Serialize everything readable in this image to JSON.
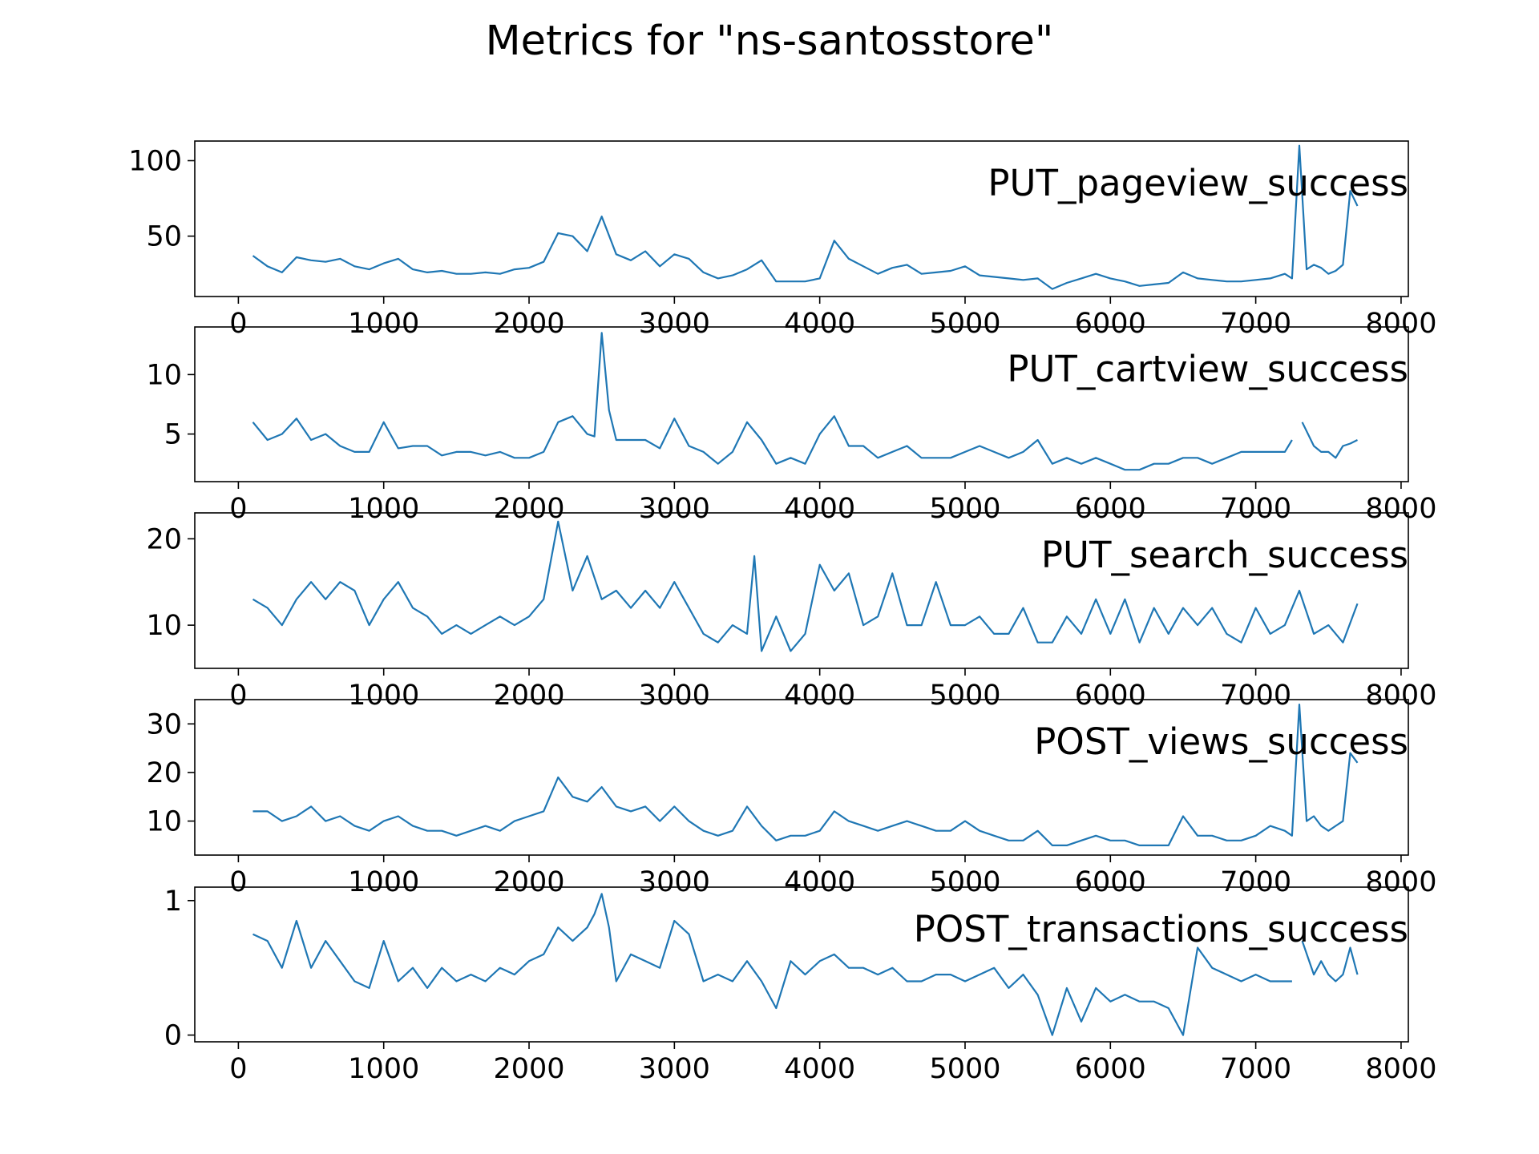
{
  "figure": {
    "title": "Metrics for \"ns-santosstore\""
  },
  "colors": {
    "line": "#1f77b4",
    "axes": "#000000",
    "background": "#ffffff"
  },
  "chart_data": [
    {
      "type": "line",
      "label": "PUT_pageview_success",
      "xlim": [
        -300,
        8050
      ],
      "ylim": [
        10,
        113
      ],
      "xticks": [
        0,
        1000,
        2000,
        3000,
        4000,
        5000,
        6000,
        7000,
        8000
      ],
      "yticks": [
        50,
        100
      ],
      "x": [
        100,
        200,
        300,
        400,
        500,
        600,
        700,
        800,
        900,
        1000,
        1100,
        1200,
        1300,
        1400,
        1500,
        1600,
        1700,
        1800,
        1900,
        2000,
        2100,
        2200,
        2300,
        2400,
        2500,
        2600,
        2700,
        2800,
        2900,
        3000,
        3100,
        3200,
        3300,
        3400,
        3500,
        3600,
        3700,
        3800,
        3900,
        4000,
        4100,
        4200,
        4300,
        4400,
        4500,
        4600,
        4700,
        4800,
        4900,
        5000,
        5100,
        5200,
        5300,
        5400,
        5500,
        5600,
        5700,
        5800,
        5900,
        6000,
        6100,
        6200,
        6300,
        6400,
        6500,
        6600,
        6700,
        6800,
        6900,
        7000,
        7100,
        7200,
        7250,
        7300,
        7350,
        7400,
        7450,
        7500,
        7550,
        7600,
        7650,
        7700
      ],
      "y": [
        37,
        30,
        26,
        36,
        34,
        33,
        35,
        30,
        28,
        32,
        35,
        28,
        26,
        27,
        25,
        25,
        26,
        25,
        28,
        29,
        33,
        52,
        50,
        40,
        63,
        38,
        34,
        40,
        30,
        38,
        35,
        26,
        22,
        24,
        28,
        34,
        20,
        20,
        20,
        22,
        47,
        35,
        30,
        25,
        29,
        31,
        25,
        26,
        27,
        30,
        24,
        23,
        22,
        21,
        22,
        15,
        19,
        22,
        25,
        22,
        20,
        17,
        18,
        19,
        26,
        22,
        21,
        20,
        20,
        21,
        22,
        25,
        22,
        110,
        28,
        31,
        29,
        25,
        27,
        31,
        80,
        70
      ]
    },
    {
      "type": "line",
      "label": "PUT_cartview_success",
      "xlim": [
        -300,
        8050
      ],
      "ylim": [
        1,
        14
      ],
      "xticks": [
        0,
        1000,
        2000,
        3000,
        4000,
        5000,
        6000,
        7000,
        8000
      ],
      "yticks": [
        5,
        10
      ],
      "x": [
        100,
        200,
        300,
        400,
        500,
        600,
        700,
        800,
        900,
        1000,
        1100,
        1200,
        1300,
        1400,
        1500,
        1600,
        1700,
        1800,
        1900,
        2000,
        2100,
        2200,
        2300,
        2400,
        2450,
        2500,
        2550,
        2600,
        2700,
        2800,
        2900,
        3000,
        3100,
        3200,
        3300,
        3400,
        3500,
        3600,
        3700,
        3800,
        3900,
        4000,
        4100,
        4200,
        4300,
        4400,
        4500,
        4600,
        4700,
        4800,
        4900,
        5000,
        5100,
        5200,
        5300,
        5400,
        5500,
        5600,
        5700,
        5800,
        5900,
        6000,
        6100,
        6200,
        6300,
        6400,
        6500,
        6600,
        6700,
        6800,
        6900,
        7000,
        7100,
        7200,
        7250,
        null,
        7320,
        7400,
        7450,
        7500,
        7550,
        7600,
        7650,
        7700
      ],
      "y": [
        6,
        4.5,
        5,
        6.3,
        4.5,
        5,
        4,
        3.5,
        3.5,
        6,
        3.8,
        4,
        4,
        3.2,
        3.5,
        3.5,
        3.2,
        3.5,
        3,
        3,
        3.5,
        6,
        6.5,
        5,
        4.8,
        13.5,
        7,
        4.5,
        4.5,
        4.5,
        3.8,
        6.3,
        4,
        3.5,
        2.5,
        3.5,
        6,
        4.5,
        2.5,
        3,
        2.5,
        5,
        6.5,
        4,
        4,
        3,
        3.5,
        4,
        3,
        3,
        3,
        3.5,
        4,
        3.5,
        3,
        3.5,
        4.5,
        2.5,
        3,
        2.5,
        3,
        2.5,
        2,
        2,
        2.5,
        2.5,
        3,
        3,
        2.5,
        3,
        3.5,
        3.5,
        3.5,
        3.5,
        4.5,
        null,
        6,
        4,
        3.5,
        3.5,
        3,
        4,
        4.2,
        4.5
      ]
    },
    {
      "type": "line",
      "label": "PUT_search_success",
      "xlim": [
        -300,
        8050
      ],
      "ylim": [
        5,
        23
      ],
      "xticks": [
        0,
        1000,
        2000,
        3000,
        4000,
        5000,
        6000,
        7000,
        8000
      ],
      "yticks": [
        10,
        20
      ],
      "x": [
        100,
        200,
        300,
        400,
        500,
        600,
        700,
        800,
        900,
        1000,
        1100,
        1200,
        1300,
        1400,
        1500,
        1600,
        1700,
        1800,
        1900,
        2000,
        2100,
        2200,
        2300,
        2400,
        2500,
        2600,
        2700,
        2800,
        2900,
        3000,
        3100,
        3200,
        3300,
        3400,
        3500,
        3550,
        3600,
        3700,
        3800,
        3900,
        4000,
        4100,
        4200,
        4300,
        4400,
        4500,
        4600,
        4700,
        4800,
        4900,
        5000,
        5100,
        5200,
        5300,
        5400,
        5500,
        5600,
        5700,
        5800,
        5900,
        6000,
        6100,
        6200,
        6300,
        6400,
        6500,
        6600,
        6700,
        6800,
        6900,
        7000,
        7100,
        7200,
        7300,
        7400,
        7500,
        7600,
        7700
      ],
      "y": [
        13,
        12,
        10,
        13,
        15,
        13,
        15,
        14,
        10,
        13,
        15,
        12,
        11,
        9,
        10,
        9,
        10,
        11,
        10,
        11,
        13,
        22,
        14,
        18,
        13,
        14,
        12,
        14,
        12,
        15,
        12,
        9,
        8,
        10,
        9,
        18,
        7,
        11,
        7,
        9,
        17,
        14,
        16,
        10,
        11,
        16,
        10,
        10,
        15,
        10,
        10,
        11,
        9,
        9,
        12,
        8,
        8,
        11,
        9,
        13,
        9,
        13,
        8,
        12,
        9,
        12,
        10,
        12,
        9,
        8,
        12,
        9,
        10,
        14,
        9,
        10,
        8,
        12.5
      ]
    },
    {
      "type": "line",
      "label": "POST_views_success",
      "xlim": [
        -300,
        8050
      ],
      "ylim": [
        3,
        35
      ],
      "xticks": [
        0,
        1000,
        2000,
        3000,
        4000,
        5000,
        6000,
        7000,
        8000
      ],
      "yticks": [
        10,
        20,
        30
      ],
      "x": [
        100,
        200,
        300,
        400,
        500,
        600,
        700,
        800,
        900,
        1000,
        1100,
        1200,
        1300,
        1400,
        1500,
        1600,
        1700,
        1800,
        1900,
        2000,
        2100,
        2200,
        2300,
        2400,
        2500,
        2600,
        2700,
        2800,
        2900,
        3000,
        3100,
        3200,
        3300,
        3400,
        3500,
        3600,
        3700,
        3800,
        3900,
        4000,
        4100,
        4200,
        4300,
        4400,
        4500,
        4600,
        4700,
        4800,
        4900,
        5000,
        5100,
        5200,
        5300,
        5400,
        5500,
        5600,
        5700,
        5800,
        5900,
        6000,
        6100,
        6200,
        6300,
        6400,
        6500,
        6600,
        6700,
        6800,
        6900,
        7000,
        7100,
        7200,
        7250,
        7300,
        7350,
        7400,
        7450,
        7500,
        7550,
        7600,
        7650,
        7700
      ],
      "y": [
        12,
        12,
        10,
        11,
        13,
        10,
        11,
        9,
        8,
        10,
        11,
        9,
        8,
        8,
        7,
        8,
        9,
        8,
        10,
        11,
        12,
        19,
        15,
        14,
        17,
        13,
        12,
        13,
        10,
        13,
        10,
        8,
        7,
        8,
        13,
        9,
        6,
        7,
        7,
        8,
        12,
        10,
        9,
        8,
        9,
        10,
        9,
        8,
        8,
        10,
        8,
        7,
        6,
        6,
        8,
        5,
        5,
        6,
        7,
        6,
        6,
        5,
        5,
        5,
        11,
        7,
        7,
        6,
        6,
        7,
        9,
        8,
        7,
        34,
        10,
        11,
        9,
        8,
        9,
        10,
        24,
        22
      ]
    },
    {
      "type": "line",
      "label": "POST_transactions_success",
      "xlim": [
        -300,
        8050
      ],
      "ylim": [
        -0.05,
        1.1
      ],
      "xticks": [
        0,
        1000,
        2000,
        3000,
        4000,
        5000,
        6000,
        7000,
        8000
      ],
      "yticks": [
        0,
        1
      ],
      "x": [
        100,
        200,
        300,
        400,
        500,
        600,
        700,
        800,
        900,
        1000,
        1100,
        1200,
        1300,
        1400,
        1500,
        1600,
        1700,
        1800,
        1900,
        2000,
        2100,
        2200,
        2300,
        2400,
        2450,
        2500,
        2550,
        2600,
        2700,
        2800,
        2900,
        3000,
        3100,
        3200,
        3300,
        3400,
        3500,
        3600,
        3700,
        3800,
        3900,
        4000,
        4100,
        4200,
        4300,
        4400,
        4500,
        4600,
        4700,
        4800,
        4900,
        5000,
        5100,
        5200,
        5300,
        5400,
        5500,
        5600,
        5700,
        5800,
        5900,
        6000,
        6100,
        6200,
        6300,
        6400,
        6500,
        6600,
        6700,
        6800,
        6900,
        7000,
        7100,
        7200,
        7250,
        null,
        7320,
        7400,
        7450,
        7500,
        7550,
        7600,
        7650,
        7700
      ],
      "y": [
        0.75,
        0.7,
        0.5,
        0.85,
        0.5,
        0.7,
        0.55,
        0.4,
        0.35,
        0.7,
        0.4,
        0.5,
        0.35,
        0.5,
        0.4,
        0.45,
        0.4,
        0.5,
        0.45,
        0.55,
        0.6,
        0.8,
        0.7,
        0.8,
        0.9,
        1.05,
        0.8,
        0.4,
        0.6,
        0.55,
        0.5,
        0.85,
        0.75,
        0.4,
        0.45,
        0.4,
        0.55,
        0.4,
        0.2,
        0.55,
        0.45,
        0.55,
        0.6,
        0.5,
        0.5,
        0.45,
        0.5,
        0.4,
        0.4,
        0.45,
        0.45,
        0.4,
        0.45,
        0.5,
        0.35,
        0.45,
        0.3,
        0.0,
        0.35,
        0.1,
        0.35,
        0.25,
        0.3,
        0.25,
        0.25,
        0.2,
        0.0,
        0.65,
        0.5,
        0.45,
        0.4,
        0.45,
        0.4,
        0.4,
        0.4,
        null,
        0.7,
        0.45,
        0.55,
        0.45,
        0.4,
        0.45,
        0.65,
        0.45
      ]
    }
  ]
}
